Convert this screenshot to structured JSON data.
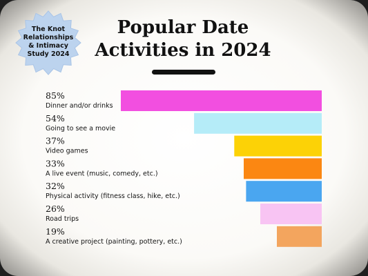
{
  "badge": {
    "lines": [
      "The Knot",
      "Relationships",
      "& Intimacy",
      "Study 2024"
    ]
  },
  "chart_data": {
    "type": "bar",
    "orientation": "horizontal",
    "title_lines": [
      "Popular Date",
      "Activities in 2024"
    ],
    "xlim": [
      0,
      85
    ],
    "categories": [
      "Dinner and/or drinks",
      "Going to see a movie",
      "Video games",
      "A live event (music, comedy, etc.)",
      "Physical activity (fitness class, hike, etc.)",
      "Road trips",
      "A creative project (painting, pottery, etc.)"
    ],
    "values": [
      85,
      54,
      37,
      33,
      32,
      26,
      19
    ],
    "value_labels": [
      "85%",
      "54%",
      "37%",
      "33%",
      "32%",
      "26%",
      "19%"
    ],
    "colors": [
      "#f24fe0",
      "#b5ecf8",
      "#fcd206",
      "#fb8712",
      "#4aa6f0",
      "#f8c4f3",
      "#f3a55e"
    ],
    "grid": false,
    "legend": "none"
  }
}
